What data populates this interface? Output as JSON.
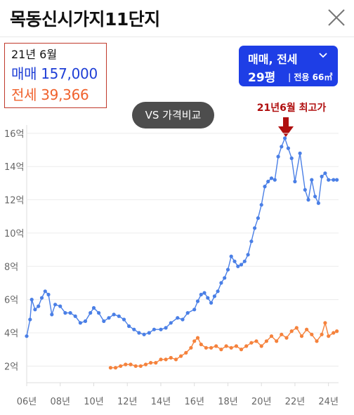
{
  "header": {
    "title": "목동신시가지11단지"
  },
  "info": {
    "date": "21년 6월",
    "sale": "매매 157,000",
    "jeonse": "전세 39,366"
  },
  "selector": {
    "type": "매매, 전세",
    "size": "29평",
    "area": "전용 66㎡"
  },
  "vs_button": "VS 가격비교",
  "peak_label": "21년6월 최고가",
  "colors": {
    "sale": "#4a7fe6",
    "jeonse": "#f5823c",
    "accent": "#1e3ee6",
    "peak": "#b00f0f"
  },
  "chart_data": {
    "type": "line",
    "xlabel": "",
    "ylabel": "",
    "x_ticks": [
      "06년",
      "08년",
      "10년",
      "12년",
      "14년",
      "16년",
      "18년",
      "20년",
      "22년",
      "24년"
    ],
    "y_ticks": [
      "2억",
      "4억",
      "6억",
      "8억",
      "10억",
      "12억",
      "14억",
      "16억"
    ],
    "x_range": [
      2006,
      2024.6
    ],
    "y_range": [
      1,
      16.5
    ],
    "grid": true,
    "series": [
      {
        "name": "매매",
        "points": [
          [
            2006.0,
            3.8
          ],
          [
            2006.2,
            4.8
          ],
          [
            2006.3,
            6.0
          ],
          [
            2006.5,
            5.4
          ],
          [
            2006.7,
            5.6
          ],
          [
            2006.9,
            6.1
          ],
          [
            2007.1,
            6.5
          ],
          [
            2007.3,
            6.3
          ],
          [
            2007.5,
            5.1
          ],
          [
            2007.7,
            5.7
          ],
          [
            2008.0,
            5.6
          ],
          [
            2008.3,
            5.2
          ],
          [
            2008.6,
            5.2
          ],
          [
            2008.9,
            5.0
          ],
          [
            2009.2,
            4.6
          ],
          [
            2009.5,
            4.7
          ],
          [
            2009.8,
            5.2
          ],
          [
            2010.0,
            5.5
          ],
          [
            2010.3,
            5.2
          ],
          [
            2010.6,
            4.7
          ],
          [
            2010.9,
            4.9
          ],
          [
            2011.2,
            5.1
          ],
          [
            2011.5,
            5.0
          ],
          [
            2011.8,
            4.8
          ],
          [
            2012.1,
            4.4
          ],
          [
            2012.4,
            4.2
          ],
          [
            2012.7,
            4.0
          ],
          [
            2013.0,
            3.9
          ],
          [
            2013.3,
            4.0
          ],
          [
            2013.6,
            4.2
          ],
          [
            2014.0,
            4.2
          ],
          [
            2014.3,
            4.3
          ],
          [
            2014.6,
            4.6
          ],
          [
            2015.0,
            4.9
          ],
          [
            2015.3,
            4.8
          ],
          [
            2015.6,
            5.2
          ],
          [
            2016.0,
            5.4
          ],
          [
            2016.2,
            5.9
          ],
          [
            2016.4,
            6.3
          ],
          [
            2016.6,
            6.4
          ],
          [
            2016.8,
            6.1
          ],
          [
            2017.0,
            5.8
          ],
          [
            2017.2,
            6.2
          ],
          [
            2017.4,
            6.5
          ],
          [
            2017.6,
            7.0
          ],
          [
            2017.8,
            7.3
          ],
          [
            2018.0,
            7.8
          ],
          [
            2018.2,
            8.6
          ],
          [
            2018.4,
            8.3
          ],
          [
            2018.6,
            8.0
          ],
          [
            2018.8,
            8.1
          ],
          [
            2019.0,
            8.3
          ],
          [
            2019.2,
            8.7
          ],
          [
            2019.4,
            9.5
          ],
          [
            2019.6,
            10.3
          ],
          [
            2019.8,
            10.9
          ],
          [
            2020.0,
            11.7
          ],
          [
            2020.2,
            12.8
          ],
          [
            2020.4,
            13.1
          ],
          [
            2020.6,
            13.3
          ],
          [
            2020.8,
            13.2
          ],
          [
            2021.0,
            14.6
          ],
          [
            2021.2,
            15.2
          ],
          [
            2021.4,
            15.7
          ],
          [
            2021.6,
            15.1
          ],
          [
            2021.8,
            14.5
          ],
          [
            2022.0,
            13.1
          ],
          [
            2022.3,
            14.8
          ],
          [
            2022.6,
            12.6
          ],
          [
            2022.8,
            12.0
          ],
          [
            2023.0,
            13.2
          ],
          [
            2023.2,
            12.2
          ],
          [
            2023.4,
            11.8
          ],
          [
            2023.6,
            13.4
          ],
          [
            2023.8,
            13.6
          ],
          [
            2024.0,
            13.2
          ],
          [
            2024.3,
            13.2
          ],
          [
            2024.5,
            13.2
          ]
        ]
      },
      {
        "name": "전세",
        "points": [
          [
            2011.0,
            1.9
          ],
          [
            2011.3,
            1.9
          ],
          [
            2011.6,
            2.0
          ],
          [
            2011.9,
            2.1
          ],
          [
            2012.2,
            2.1
          ],
          [
            2012.5,
            2.0
          ],
          [
            2012.8,
            2.0
          ],
          [
            2013.1,
            2.1
          ],
          [
            2013.4,
            2.2
          ],
          [
            2013.7,
            2.2
          ],
          [
            2014.0,
            2.4
          ],
          [
            2014.3,
            2.4
          ],
          [
            2014.6,
            2.5
          ],
          [
            2014.9,
            2.4
          ],
          [
            2015.2,
            2.6
          ],
          [
            2015.5,
            2.8
          ],
          [
            2015.8,
            3.1
          ],
          [
            2016.0,
            3.5
          ],
          [
            2016.2,
            3.7
          ],
          [
            2016.4,
            3.3
          ],
          [
            2016.7,
            3.1
          ],
          [
            2017.0,
            3.1
          ],
          [
            2017.3,
            3.2
          ],
          [
            2017.6,
            3.0
          ],
          [
            2017.9,
            3.2
          ],
          [
            2018.2,
            3.1
          ],
          [
            2018.5,
            3.2
          ],
          [
            2018.8,
            3.0
          ],
          [
            2019.1,
            3.2
          ],
          [
            2019.4,
            3.4
          ],
          [
            2019.7,
            3.5
          ],
          [
            2020.0,
            3.2
          ],
          [
            2020.3,
            3.5
          ],
          [
            2020.6,
            3.8
          ],
          [
            2020.9,
            3.5
          ],
          [
            2021.2,
            3.9
          ],
          [
            2021.5,
            3.7
          ],
          [
            2021.8,
            4.1
          ],
          [
            2022.1,
            4.3
          ],
          [
            2022.4,
            3.8
          ],
          [
            2022.7,
            4.2
          ],
          [
            2023.0,
            3.9
          ],
          [
            2023.3,
            3.5
          ],
          [
            2023.6,
            3.9
          ],
          [
            2023.8,
            4.6
          ],
          [
            2024.0,
            3.8
          ],
          [
            2024.3,
            4.0
          ],
          [
            2024.5,
            4.1
          ]
        ]
      }
    ],
    "annotation": {
      "label": "21년6월 최고가",
      "x": 2021.4,
      "y": 15.7
    }
  }
}
